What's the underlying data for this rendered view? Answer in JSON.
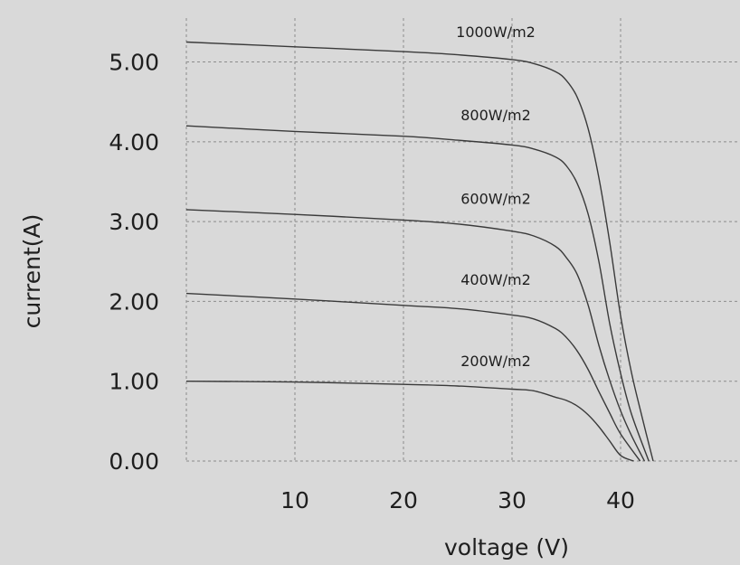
{
  "chart_data": {
    "type": "line",
    "title": "",
    "xlabel": "voltage (V)",
    "ylabel": "current(A)",
    "xlim": [
      0,
      51
    ],
    "ylim": [
      0,
      5.55
    ],
    "x_ticks": [
      10,
      20,
      30,
      40
    ],
    "x_tick_labels": [
      "10",
      "20",
      "30",
      "40"
    ],
    "y_ticks": [
      0,
      1,
      2,
      3,
      4,
      5
    ],
    "y_tick_labels": [
      "0.00",
      "1.00",
      "2.00",
      "3.00",
      "4.00",
      "5.00"
    ],
    "grid": true,
    "grid_style": "dotted",
    "series": [
      {
        "name": "1000W/m2",
        "x": [
          0,
          10,
          20,
          25,
          30,
          32,
          34,
          35,
          36,
          37,
          38,
          39,
          40,
          41,
          42,
          43
        ],
        "y": [
          5.25,
          5.19,
          5.13,
          5.09,
          5.03,
          4.98,
          4.88,
          4.77,
          4.56,
          4.17,
          3.55,
          2.74,
          1.82,
          1.11,
          0.54,
          0.0
        ]
      },
      {
        "name": "800W/m2",
        "x": [
          0,
          10,
          20,
          25,
          30,
          32,
          34,
          35,
          36,
          37,
          38,
          39,
          40,
          41,
          42.6
        ],
        "y": [
          4.2,
          4.13,
          4.07,
          4.02,
          3.96,
          3.91,
          3.81,
          3.7,
          3.48,
          3.1,
          2.5,
          1.72,
          1.1,
          0.59,
          0.0
        ]
      },
      {
        "name": "600W/m2",
        "x": [
          0,
          10,
          20,
          25,
          30,
          32,
          34,
          35,
          36,
          37,
          38,
          39,
          40,
          41,
          42.2
        ],
        "y": [
          3.15,
          3.09,
          3.02,
          2.97,
          2.88,
          2.82,
          2.69,
          2.55,
          2.34,
          1.96,
          1.45,
          1.01,
          0.63,
          0.32,
          0.0
        ]
      },
      {
        "name": "400W/m2",
        "x": [
          0,
          10,
          20,
          25,
          30,
          32,
          34,
          35,
          36,
          37,
          38,
          39,
          40,
          41.8
        ],
        "y": [
          2.1,
          2.03,
          1.95,
          1.91,
          1.83,
          1.78,
          1.66,
          1.55,
          1.38,
          1.15,
          0.87,
          0.6,
          0.34,
          0.0
        ]
      },
      {
        "name": "200W/m2",
        "x": [
          0,
          10,
          20,
          25,
          30,
          32,
          34,
          35,
          36,
          37,
          38,
          39,
          40,
          41.2
        ],
        "y": [
          1.0,
          0.99,
          0.96,
          0.94,
          0.9,
          0.88,
          0.8,
          0.76,
          0.69,
          0.58,
          0.43,
          0.25,
          0.07,
          0.0
        ]
      }
    ],
    "series_label_x": 28.5,
    "series_label_y": [
      5.31,
      4.27,
      3.22,
      2.21,
      1.19
    ],
    "colors": {
      "background": "#d9d9d9",
      "line": "#3a3a3a",
      "grid": "#8c8c8c",
      "text": "#1e1e1e"
    }
  }
}
